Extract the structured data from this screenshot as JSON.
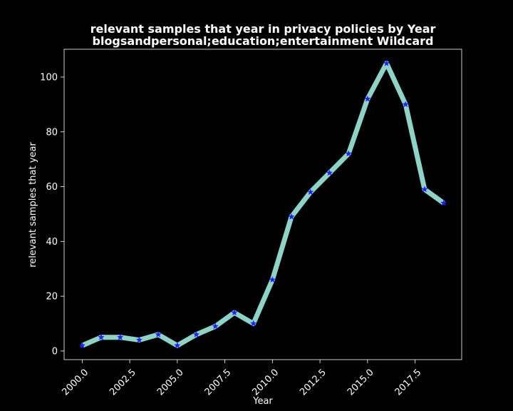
{
  "chart_data": {
    "type": "line",
    "title_line1": "relevant samples that year in privacy policies by Year",
    "title_line2": "blogsandpersonal;education;entertainment Wildcard",
    "xlabel": "Year",
    "ylabel": "relevant samples that year",
    "x": [
      2000,
      2001,
      2002,
      2003,
      2004,
      2005,
      2006,
      2007,
      2008,
      2009,
      2010,
      2011,
      2012,
      2013,
      2014,
      2015,
      2016,
      2017,
      2018,
      2019
    ],
    "series": [
      {
        "values": [
          2,
          5,
          5,
          4,
          6,
          2,
          6,
          9,
          14,
          10,
          26,
          49,
          58,
          65,
          72,
          92,
          105,
          90,
          59,
          54
        ],
        "line_color": "#8dd3c7",
        "marker_color": "#1f1fff",
        "marker": "star"
      }
    ],
    "xlim": [
      1999.05,
      2019.95
    ],
    "ylim": [
      -3.15,
      110.15
    ],
    "xticks": [
      "2000.0",
      "2002.5",
      "2005.0",
      "2007.5",
      "2010.0",
      "2012.5",
      "2015.0",
      "2017.5"
    ],
    "xtick_values": [
      2000,
      2002.5,
      2005,
      2007.5,
      2010,
      2012.5,
      2015,
      2017.5
    ],
    "yticks": [
      "0",
      "20",
      "40",
      "60",
      "80",
      "100"
    ],
    "ytick_values": [
      0,
      20,
      40,
      60,
      80,
      100
    ],
    "grid": false,
    "background": "#000000",
    "foreground": "#ffffff"
  }
}
